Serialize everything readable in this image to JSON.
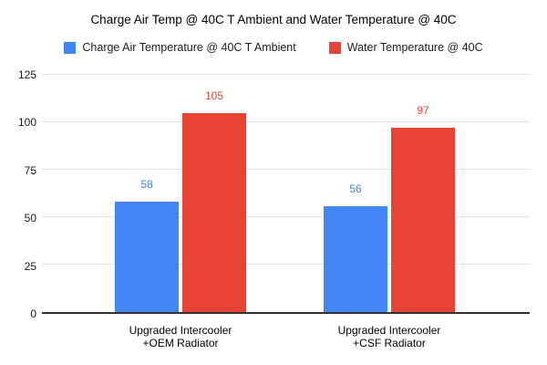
{
  "chart_data": {
    "type": "bar",
    "title": "Charge Air Temp @ 40C T Ambient and Water Temperature @ 40C",
    "categories": [
      "Upgraded Intercooler\n+OEM Radiator",
      "Upgraded Intercooler\n+CSF Radiator"
    ],
    "series": [
      {
        "name": "Charge Air Temperature @ 40C T Ambient",
        "color": "#4285F4",
        "values": [
          58,
          56
        ]
      },
      {
        "name": "Water Temperature @ 40C",
        "color": "#EA4335",
        "values": [
          105,
          97
        ]
      }
    ],
    "y_ticks": [
      0,
      25,
      50,
      75,
      100,
      125
    ],
    "ylim": [
      0,
      125
    ],
    "xlabel": "",
    "ylabel": "",
    "grid": true,
    "legend_position": "top",
    "data_labels": true
  },
  "colors": {
    "background": "#ffffff",
    "gridline": "#e2e2e2",
    "axis_line": "#333333",
    "title_text": "#000000"
  }
}
